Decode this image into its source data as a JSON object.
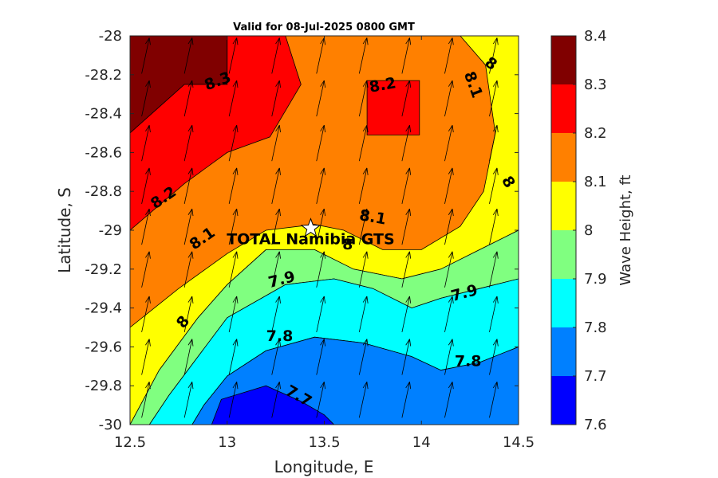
{
  "chart_data": {
    "type": "contour",
    "title": "Valid for 08-Jul-2025 0800 GMT",
    "xlabel": "Longitude, E",
    "ylabel": "Latitude, S",
    "xlim": [
      12.5,
      14.5
    ],
    "ylim": [
      -30,
      -28
    ],
    "xticks": [
      "12.5",
      "13",
      "13.5",
      "14",
      "14.5"
    ],
    "yticks": [
      "-28",
      "-28.2",
      "-28.4",
      "-28.6",
      "-28.8",
      "-29",
      "-29.2",
      "-29.4",
      "-29.6",
      "-29.8",
      "-30"
    ],
    "colorbar": {
      "label": "Wave Height, ft",
      "levels": [
        7.6,
        7.7,
        7.8,
        7.9,
        8.0,
        8.1,
        8.2,
        8.3,
        8.4
      ],
      "tick_labels": [
        "7.6",
        "7.7",
        "7.8",
        "7.9",
        "8",
        "8.1",
        "8.2",
        "8.3",
        "8.4"
      ],
      "colors": [
        "#0000ff",
        "#0080ff",
        "#00ffff",
        "#80ff80",
        "#ffff00",
        "#ff8000",
        "#ff0000",
        "#800000"
      ]
    },
    "filled_regions": [
      {
        "level": 8.3,
        "color": "#800000",
        "points": [
          [
            12.5,
            -28
          ],
          [
            13.0,
            -28
          ],
          [
            13.0,
            -28.25
          ],
          [
            12.78,
            -28.25
          ],
          [
            12.5,
            -28.5
          ]
        ]
      },
      {
        "level": 8.2,
        "color": "#ff0000",
        "points": [
          [
            12.5,
            -28.5
          ],
          [
            12.78,
            -28.25
          ],
          [
            13.0,
            -28.25
          ],
          [
            13.0,
            -28
          ],
          [
            13.3,
            -28
          ],
          [
            13.38,
            -28.25
          ],
          [
            13.22,
            -28.52
          ],
          [
            13.0,
            -28.6
          ],
          [
            12.78,
            -28.76
          ],
          [
            12.5,
            -29.0
          ]
        ]
      },
      {
        "level": 8.2,
        "color": "#ff0000",
        "points": [
          [
            13.72,
            -28.23
          ],
          [
            13.99,
            -28.23
          ],
          [
            13.99,
            -28.51
          ],
          [
            13.72,
            -28.51
          ]
        ]
      },
      {
        "level": 8.0,
        "color": "#ffff00",
        "points": [
          [
            12.5,
            -29.5
          ],
          [
            12.75,
            -29.3
          ],
          [
            13.0,
            -29.12
          ],
          [
            13.2,
            -29.0
          ],
          [
            13.45,
            -28.97
          ],
          [
            13.6,
            -29.0
          ],
          [
            13.8,
            -29.1
          ],
          [
            14.0,
            -29.1
          ],
          [
            14.2,
            -28.98
          ],
          [
            14.32,
            -28.8
          ],
          [
            14.38,
            -28.5
          ],
          [
            14.33,
            -28.15
          ],
          [
            14.2,
            -28.0
          ],
          [
            14.5,
            -28.0
          ],
          [
            14.5,
            -29.0
          ],
          [
            14.3,
            -29.1
          ],
          [
            14.1,
            -29.2
          ],
          [
            13.9,
            -29.25
          ],
          [
            13.65,
            -29.2
          ],
          [
            13.45,
            -29.1
          ],
          [
            13.2,
            -29.1
          ],
          [
            13.0,
            -29.28
          ],
          [
            12.85,
            -29.45
          ],
          [
            12.65,
            -29.72
          ],
          [
            12.5,
            -30.0
          ]
        ]
      },
      {
        "level": 7.9,
        "color": "#80ff80",
        "points": [
          [
            12.5,
            -30.0
          ],
          [
            12.65,
            -29.72
          ],
          [
            12.85,
            -29.45
          ],
          [
            13.0,
            -29.28
          ],
          [
            13.2,
            -29.1
          ],
          [
            13.45,
            -29.1
          ],
          [
            13.65,
            -29.2
          ],
          [
            13.9,
            -29.25
          ],
          [
            14.1,
            -29.2
          ],
          [
            14.3,
            -29.1
          ],
          [
            14.5,
            -29.0
          ],
          [
            14.5,
            -29.25
          ],
          [
            14.3,
            -29.3
          ],
          [
            14.1,
            -29.35
          ],
          [
            13.95,
            -29.4
          ],
          [
            13.75,
            -29.3
          ],
          [
            13.55,
            -29.25
          ],
          [
            13.3,
            -29.28
          ],
          [
            13.0,
            -29.45
          ],
          [
            12.85,
            -29.65
          ],
          [
            12.7,
            -29.85
          ],
          [
            12.6,
            -30.0
          ]
        ]
      },
      {
        "level": 7.8,
        "color": "#00ffff",
        "points": [
          [
            12.6,
            -30.0
          ],
          [
            12.7,
            -29.85
          ],
          [
            12.85,
            -29.65
          ],
          [
            13.0,
            -29.45
          ],
          [
            13.3,
            -29.28
          ],
          [
            13.55,
            -29.25
          ],
          [
            13.75,
            -29.3
          ],
          [
            13.95,
            -29.4
          ],
          [
            14.1,
            -29.35
          ],
          [
            14.3,
            -29.3
          ],
          [
            14.5,
            -29.25
          ],
          [
            14.5,
            -29.6
          ],
          [
            14.3,
            -29.68
          ],
          [
            14.1,
            -29.72
          ],
          [
            13.95,
            -29.65
          ],
          [
            13.7,
            -29.58
          ],
          [
            13.45,
            -29.55
          ],
          [
            13.2,
            -29.62
          ],
          [
            13.0,
            -29.75
          ],
          [
            12.88,
            -29.9
          ],
          [
            12.82,
            -30.0
          ]
        ]
      },
      {
        "level": 7.7,
        "color": "#0080ff",
        "points": [
          [
            12.82,
            -30.0
          ],
          [
            12.88,
            -29.9
          ],
          [
            13.0,
            -29.75
          ],
          [
            13.2,
            -29.62
          ],
          [
            13.45,
            -29.55
          ],
          [
            13.7,
            -29.58
          ],
          [
            13.95,
            -29.65
          ],
          [
            14.1,
            -29.72
          ],
          [
            14.3,
            -29.68
          ],
          [
            14.5,
            -29.6
          ],
          [
            14.5,
            -30.0
          ]
        ]
      },
      {
        "level": 7.6,
        "color": "#0000ff",
        "points": [
          [
            12.92,
            -30.0
          ],
          [
            12.97,
            -29.87
          ],
          [
            13.2,
            -29.8
          ],
          [
            13.38,
            -29.88
          ],
          [
            13.5,
            -29.95
          ],
          [
            13.55,
            -30.0
          ]
        ]
      }
    ],
    "contour_labels": [
      {
        "text": "8.3",
        "x": 12.95,
        "y": -28.23,
        "rotate": -20
      },
      {
        "text": "8.2",
        "x": 13.8,
        "y": -28.25,
        "rotate": -10
      },
      {
        "text": "8.1",
        "x": 14.27,
        "y": -28.25,
        "rotate": 70
      },
      {
        "text": "8",
        "x": 14.36,
        "y": -28.14,
        "rotate": 35
      },
      {
        "text": "8.2",
        "x": 12.67,
        "y": -28.83,
        "rotate": -35
      },
      {
        "text": "8",
        "x": 14.45,
        "y": -28.75,
        "rotate": 60
      },
      {
        "text": "8.1",
        "x": 12.87,
        "y": -29.04,
        "rotate": -35
      },
      {
        "text": "8.1",
        "x": 13.75,
        "y": -28.93,
        "rotate": 10
      },
      {
        "text": "8",
        "x": 13.62,
        "y": -29.07,
        "rotate": 0
      },
      {
        "text": "7.9",
        "x": 13.28,
        "y": -29.25,
        "rotate": -15
      },
      {
        "text": "7.9",
        "x": 14.22,
        "y": -29.32,
        "rotate": -15
      },
      {
        "text": "8",
        "x": 12.77,
        "y": -29.47,
        "rotate": -50
      },
      {
        "text": "7.8",
        "x": 13.27,
        "y": -29.54,
        "rotate": 0
      },
      {
        "text": "7.8",
        "x": 14.24,
        "y": -29.67,
        "rotate": 0
      },
      {
        "text": "7.7",
        "x": 13.37,
        "y": -29.85,
        "rotate": 30
      }
    ],
    "vectors": {
      "x": [
        12.56,
        12.78,
        13.01,
        13.23,
        13.46,
        13.68,
        13.9,
        14.12,
        14.35
      ],
      "y": [
        -28.1,
        -28.32,
        -28.55,
        -28.77,
        -28.98,
        -29.2,
        -29.43,
        -29.65,
        -29.87
      ],
      "direction_deg_from_north": 12
    },
    "station": {
      "name": "TOTAL Namibia GTS",
      "lon": 13.43,
      "lat": -28.99
    }
  }
}
